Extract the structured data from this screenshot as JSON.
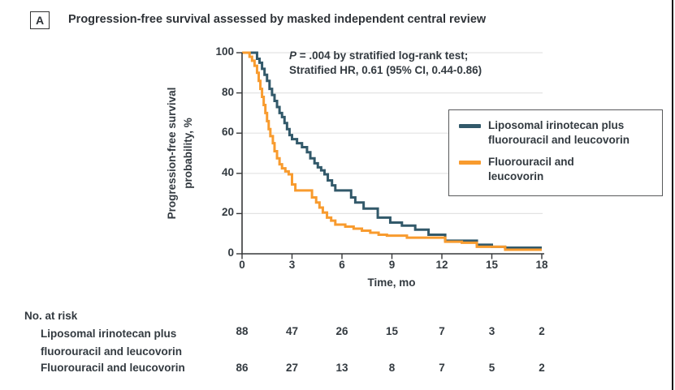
{
  "figure": {
    "panel_label": "A",
    "title": "Progression-free survival assessed by masked independent central review"
  },
  "annotation": {
    "p_symbol": "P",
    "line1_rest": " = .004 by stratified log-rank test;",
    "line2": "Stratified HR, 0.61 (95% CI, 0.44-0.86)"
  },
  "legend": {
    "items": [
      {
        "label": "Liposomal irinotecan plus\nfluorouracil and leucovorin",
        "color": "#32596A"
      },
      {
        "label": "Fluorouracil and\nleucovorin",
        "color": "#F89B2E"
      }
    ]
  },
  "chart_data": {
    "type": "line",
    "subtype": "kaplan-meier-step",
    "title": "Progression-free survival assessed by masked independent central review",
    "xlabel": "Time, mo",
    "ylabel": "Progression-free survival\nprobability, %",
    "xlim": [
      0,
      18
    ],
    "ylim": [
      0,
      100
    ],
    "xticks": [
      0,
      3,
      6,
      9,
      12,
      15,
      18
    ],
    "yticks": [
      0,
      20,
      40,
      60,
      80,
      100
    ],
    "grid": "horizontal-light",
    "legend_position": "right-inside",
    "annotations": [
      "P = .004 by stratified log-rank test;",
      "Stratified HR, 0.61 (95% CI, 0.44-0.86)"
    ],
    "series": [
      {
        "name": "Liposomal irinotecan plus fluorouracil and leucovorin",
        "color": "#32596A",
        "step_points": [
          [
            0,
            100
          ],
          [
            0.9,
            97
          ],
          [
            1.05,
            95
          ],
          [
            1.2,
            92
          ],
          [
            1.35,
            89
          ],
          [
            1.5,
            86
          ],
          [
            1.65,
            82
          ],
          [
            1.8,
            79
          ],
          [
            1.95,
            76
          ],
          [
            2.1,
            73
          ],
          [
            2.25,
            70
          ],
          [
            2.4,
            68
          ],
          [
            2.55,
            65
          ],
          [
            2.7,
            62
          ],
          [
            2.85,
            59
          ],
          [
            3.0,
            57
          ],
          [
            3.3,
            55
          ],
          [
            3.6,
            53
          ],
          [
            3.9,
            50.5
          ],
          [
            4.1,
            47.5
          ],
          [
            4.35,
            45
          ],
          [
            4.55,
            43
          ],
          [
            4.75,
            41.5
          ],
          [
            4.95,
            39.5
          ],
          [
            5.15,
            36.5
          ],
          [
            5.4,
            34
          ],
          [
            5.6,
            31.5
          ],
          [
            6.55,
            28
          ],
          [
            6.8,
            25.5
          ],
          [
            7.3,
            22.5
          ],
          [
            8.15,
            18
          ],
          [
            8.9,
            15.5
          ],
          [
            9.6,
            14
          ],
          [
            10.4,
            12
          ],
          [
            11.2,
            9.5
          ],
          [
            12.2,
            6.5
          ],
          [
            14.1,
            4.5
          ],
          [
            15.0,
            3.5
          ],
          [
            15.8,
            3
          ],
          [
            18,
            3
          ]
        ]
      },
      {
        "name": "Fluorouracil and leucovorin",
        "color": "#F89B2E",
        "step_points": [
          [
            0,
            100
          ],
          [
            0.45,
            98
          ],
          [
            0.6,
            96
          ],
          [
            0.75,
            93.5
          ],
          [
            0.9,
            90
          ],
          [
            1.0,
            86
          ],
          [
            1.1,
            82
          ],
          [
            1.2,
            78
          ],
          [
            1.3,
            74
          ],
          [
            1.4,
            70
          ],
          [
            1.5,
            66
          ],
          [
            1.6,
            62
          ],
          [
            1.7,
            58.5
          ],
          [
            1.85,
            55
          ],
          [
            1.95,
            51
          ],
          [
            2.1,
            47.5
          ],
          [
            2.25,
            44.5
          ],
          [
            2.4,
            42.5
          ],
          [
            2.6,
            41
          ],
          [
            2.8,
            39.5
          ],
          [
            3.0,
            34.5
          ],
          [
            3.2,
            31.5
          ],
          [
            4.2,
            28
          ],
          [
            4.45,
            25.5
          ],
          [
            4.65,
            23
          ],
          [
            4.85,
            20.5
          ],
          [
            5.1,
            18
          ],
          [
            5.35,
            16.5
          ],
          [
            5.6,
            14.5
          ],
          [
            6.2,
            13.5
          ],
          [
            6.7,
            12.5
          ],
          [
            7.2,
            11.5
          ],
          [
            7.7,
            10.5
          ],
          [
            8.2,
            9.5
          ],
          [
            8.7,
            9
          ],
          [
            9.9,
            8
          ],
          [
            12.2,
            6
          ],
          [
            13.2,
            5.5
          ],
          [
            14.1,
            3.5
          ],
          [
            15.8,
            2
          ],
          [
            18,
            2
          ]
        ]
      }
    ]
  },
  "risk_table": {
    "title": "No. at risk",
    "times": [
      0,
      3,
      6,
      9,
      12,
      15,
      18
    ],
    "rows": [
      {
        "label": "Liposomal irinotecan plus\nfluorouracil and leucovorin",
        "counts": [
          88,
          47,
          26,
          15,
          7,
          3,
          2
        ]
      },
      {
        "label": "Fluorouracil and leucovorin",
        "counts": [
          86,
          27,
          13,
          8,
          7,
          5,
          2
        ]
      }
    ]
  },
  "colors": {
    "series_teal": "#32596A",
    "series_orange": "#F89B2E",
    "axis": "#37383A",
    "grid": "#E3E3E3",
    "text": "#333A40",
    "border": "#141414"
  }
}
